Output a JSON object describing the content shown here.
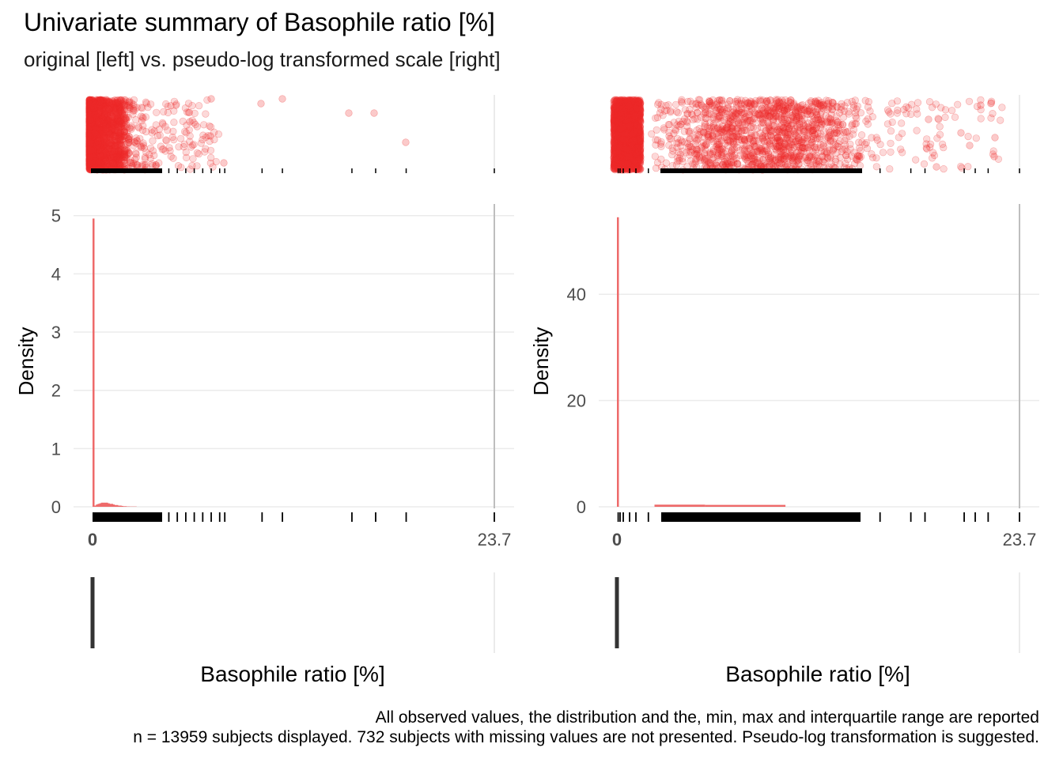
{
  "title": "Univariate summary of Basophile ratio [%]",
  "subtitle": "original [left] vs. pseudo-log transformed scale [right]",
  "caption_line1": "All observed values, the distribution and the, min, max and interquartile range are reported",
  "caption_line2": "n = 13959 subjects displayed. 732 subjects with missing values are not presented. Pseudo-log transformation is suggested.",
  "colors": {
    "points": "#EE2C2C",
    "histogram": "#EE6A6A",
    "rug": "#000000",
    "boxplot": "#333333",
    "grid": "#EBEBEB",
    "limit_line": "#BEBEBE"
  },
  "chart_data": [
    {
      "type": "histogram",
      "panel": "original",
      "xlabel": "Basophile ratio [%]",
      "ylabel": "Density",
      "x_tick_labels": [
        "0",
        "23.7"
      ],
      "xlim": [
        0,
        23.7
      ],
      "y_ticks": [
        0,
        1,
        2,
        3,
        4,
        5
      ],
      "ylim": [
        0,
        5.2
      ],
      "bins": [
        {
          "x0": 0.0,
          "x1": 0.1,
          "density": 4.95
        },
        {
          "x0": 0.1,
          "x1": 0.2,
          "density": 0.02
        },
        {
          "x0": 0.2,
          "x1": 0.3,
          "density": 0.04
        },
        {
          "x0": 0.3,
          "x1": 0.4,
          "density": 0.05
        },
        {
          "x0": 0.4,
          "x1": 0.5,
          "density": 0.06
        },
        {
          "x0": 0.5,
          "x1": 0.6,
          "density": 0.07
        },
        {
          "x0": 0.6,
          "x1": 0.7,
          "density": 0.07
        },
        {
          "x0": 0.7,
          "x1": 0.8,
          "density": 0.07
        },
        {
          "x0": 0.8,
          "x1": 0.9,
          "density": 0.07
        },
        {
          "x0": 0.9,
          "x1": 1.0,
          "density": 0.06
        },
        {
          "x0": 1.0,
          "x1": 1.1,
          "density": 0.05
        },
        {
          "x0": 1.1,
          "x1": 1.2,
          "density": 0.05
        },
        {
          "x0": 1.2,
          "x1": 1.3,
          "density": 0.04
        },
        {
          "x0": 1.3,
          "x1": 1.4,
          "density": 0.03
        },
        {
          "x0": 1.4,
          "x1": 1.5,
          "density": 0.03
        },
        {
          "x0": 1.5,
          "x1": 1.6,
          "density": 0.02
        },
        {
          "x0": 1.6,
          "x1": 1.7,
          "density": 0.02
        },
        {
          "x0": 1.7,
          "x1": 1.8,
          "density": 0.015
        },
        {
          "x0": 1.8,
          "x1": 1.9,
          "density": 0.01
        },
        {
          "x0": 1.9,
          "x1": 2.0,
          "density": 0.01
        },
        {
          "x0": 2.0,
          "x1": 2.2,
          "density": 0.006
        },
        {
          "x0": 2.2,
          "x1": 2.6,
          "density": 0.004
        }
      ],
      "rug_values": [
        0.5,
        1.0,
        1.5,
        2.0,
        2.5,
        3.0,
        3.5,
        4.0,
        4.5,
        5.0,
        5.5,
        6.0,
        6.5,
        7.0,
        7.5,
        7.8,
        10.0,
        11.2,
        15.3,
        16.7,
        18.5,
        23.7
      ],
      "boxplot": {
        "min": 0,
        "q1": 0,
        "median": 0,
        "q3": 0.1,
        "max": 23.7
      }
    },
    {
      "type": "histogram",
      "panel": "pseudo-log transformed",
      "xlabel": "Basophile ratio [%]",
      "ylabel": "Density",
      "x_tick_labels": [
        "0",
        "23.7"
      ],
      "xlim": [
        0,
        23.7
      ],
      "y_ticks": [
        0,
        20,
        40
      ],
      "ylim": [
        0,
        57
      ],
      "bins": [
        {
          "x0": 0.0,
          "x1": 0.006,
          "density": 54.5
        },
        {
          "x0": 0.6,
          "x1": 1.5,
          "density": 0.4
        },
        {
          "x0": 1.5,
          "x1": 3.5,
          "density": 0.35
        }
      ],
      "rug_values": [
        0.02,
        0.05,
        0.1,
        0.2,
        0.3,
        0.5,
        0.8,
        1.0,
        1.5,
        2.0,
        3.0,
        4.0,
        5.0,
        6.0,
        7.8,
        10.0,
        11.2,
        15.3,
        16.7,
        18.5,
        23.7
      ],
      "boxplot": {
        "min": 0,
        "q1": 0,
        "median": 0,
        "q3": 0.1,
        "max": 23.7
      }
    }
  ]
}
